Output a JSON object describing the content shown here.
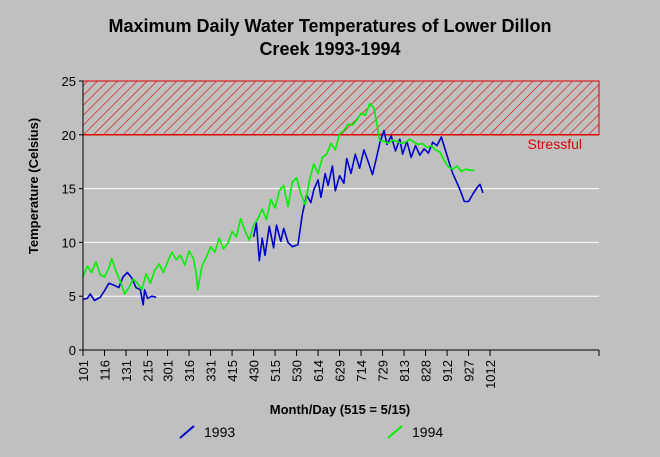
{
  "chart_data": {
    "type": "line",
    "title_line1": "Maximum Daily Water Temperatures of Lower Dillon",
    "title_line2": "Creek 1993-1994",
    "xlabel": "Month/Day (515 = 5/15)",
    "ylabel": "Temperature (Celsius)",
    "ylim": [
      0,
      25
    ],
    "yticks": [
      0,
      5,
      10,
      15,
      20,
      25
    ],
    "xlim": [
      0,
      360
    ],
    "x_tick_labels": [
      "101",
      "116",
      "131",
      "215",
      "301",
      "316",
      "331",
      "415",
      "430",
      "515",
      "530",
      "614",
      "629",
      "714",
      "729",
      "813",
      "828",
      "912",
      "927",
      "1012"
    ],
    "x_tick_days": [
      0,
      15,
      30,
      45,
      59,
      74,
      89,
      104,
      119,
      134,
      149,
      164,
      179,
      194,
      209,
      224,
      239,
      254,
      269,
      284
    ],
    "grid": "horizontal",
    "threshold": {
      "label": "Stressful",
      "y_from": 20,
      "y_to": 25,
      "color": "#e00000"
    },
    "series": [
      {
        "name": "1993",
        "color": "#0000cc",
        "points": [
          [
            0,
            4.7
          ],
          [
            3,
            4.8
          ],
          [
            5,
            5.2
          ],
          [
            8,
            4.6
          ],
          [
            12,
            4.9
          ],
          [
            15,
            5.5
          ],
          [
            18,
            6.2
          ],
          [
            22,
            6.0
          ],
          [
            25,
            5.8
          ],
          [
            28,
            6.8
          ],
          [
            31,
            7.2
          ],
          [
            34,
            6.7
          ],
          [
            37,
            5.8
          ],
          [
            40,
            5.6
          ],
          [
            42,
            4.2
          ],
          [
            43,
            5.6
          ],
          [
            45,
            4.8
          ],
          [
            48,
            5.0
          ],
          [
            51,
            4.9
          ],
          [
            52,
            null
          ],
          [
            119,
            10.5
          ],
          [
            121,
            11.8
          ],
          [
            123,
            8.3
          ],
          [
            125,
            10.4
          ],
          [
            127,
            8.8
          ],
          [
            130,
            11.5
          ],
          [
            133,
            9.5
          ],
          [
            135,
            11.6
          ],
          [
            138,
            10.1
          ],
          [
            140,
            11.3
          ],
          [
            143,
            10.0
          ],
          [
            146,
            9.6
          ],
          [
            150,
            9.8
          ],
          [
            153,
            12.6
          ],
          [
            156,
            14.4
          ],
          [
            159,
            13.7
          ],
          [
            161,
            14.9
          ],
          [
            164,
            15.8
          ],
          [
            166,
            14.2
          ],
          [
            169,
            16.4
          ],
          [
            171,
            15.3
          ],
          [
            174,
            17.1
          ],
          [
            176,
            14.8
          ],
          [
            179,
            16.2
          ],
          [
            182,
            15.5
          ],
          [
            184,
            17.8
          ],
          [
            187,
            16.4
          ],
          [
            190,
            18.2
          ],
          [
            193,
            16.9
          ],
          [
            196,
            18.6
          ],
          [
            199,
            17.5
          ],
          [
            202,
            16.3
          ],
          [
            205,
            18.0
          ],
          [
            207,
            19.2
          ],
          [
            210,
            20.4
          ],
          [
            212,
            19.1
          ],
          [
            215,
            19.9
          ],
          [
            218,
            18.5
          ],
          [
            221,
            19.6
          ],
          [
            223,
            18.2
          ],
          [
            226,
            19.4
          ],
          [
            229,
            17.9
          ],
          [
            232,
            19.0
          ],
          [
            235,
            18.1
          ],
          [
            238,
            18.7
          ],
          [
            241,
            18.3
          ],
          [
            244,
            19.3
          ],
          [
            247,
            19.0
          ],
          [
            250,
            19.8
          ],
          [
            253,
            18.5
          ],
          [
            256,
            17.2
          ],
          [
            258,
            16.4
          ],
          [
            260,
            15.8
          ],
          [
            263,
            14.9
          ],
          [
            266,
            13.8
          ],
          [
            269,
            13.8
          ],
          [
            272,
            14.5
          ],
          [
            275,
            15.1
          ],
          [
            277,
            15.4
          ],
          [
            279,
            14.6
          ]
        ]
      },
      {
        "name": "1994",
        "color": "#00ee00",
        "points": [
          [
            0,
            6.8
          ],
          [
            3,
            7.8
          ],
          [
            6,
            7.2
          ],
          [
            9,
            8.2
          ],
          [
            12,
            7.0
          ],
          [
            15,
            6.8
          ],
          [
            18,
            7.6
          ],
          [
            20,
            8.5
          ],
          [
            23,
            7.3
          ],
          [
            26,
            6.4
          ],
          [
            29,
            5.2
          ],
          [
            32,
            5.8
          ],
          [
            35,
            6.6
          ],
          [
            38,
            6.2
          ],
          [
            41,
            5.6
          ],
          [
            44,
            7.1
          ],
          [
            47,
            6.2
          ],
          [
            50,
            7.4
          ],
          [
            53,
            8.0
          ],
          [
            56,
            7.2
          ],
          [
            59,
            8.2
          ],
          [
            62,
            9.1
          ],
          [
            65,
            8.4
          ],
          [
            68,
            8.8
          ],
          [
            71,
            7.9
          ],
          [
            74,
            9.2
          ],
          [
            77,
            8.5
          ],
          [
            79,
            7.1
          ],
          [
            80,
            5.6
          ],
          [
            83,
            7.8
          ],
          [
            86,
            8.6
          ],
          [
            89,
            9.6
          ],
          [
            92,
            9.1
          ],
          [
            95,
            10.4
          ],
          [
            98,
            9.4
          ],
          [
            101,
            9.9
          ],
          [
            104,
            11.0
          ],
          [
            107,
            10.5
          ],
          [
            110,
            12.2
          ],
          [
            113,
            11.1
          ],
          [
            116,
            10.2
          ],
          [
            119,
            11.6
          ],
          [
            122,
            12.2
          ],
          [
            125,
            13.1
          ],
          [
            128,
            12.1
          ],
          [
            131,
            14.0
          ],
          [
            134,
            13.2
          ],
          [
            137,
            14.8
          ],
          [
            140,
            15.3
          ],
          [
            143,
            13.3
          ],
          [
            146,
            15.6
          ],
          [
            149,
            16.0
          ],
          [
            152,
            14.5
          ],
          [
            155,
            13.5
          ],
          [
            158,
            15.8
          ],
          [
            161,
            17.3
          ],
          [
            164,
            16.4
          ],
          [
            167,
            17.9
          ],
          [
            170,
            18.2
          ],
          [
            173,
            19.2
          ],
          [
            176,
            18.6
          ],
          [
            179,
            20.1
          ],
          [
            182,
            20.4
          ],
          [
            185,
            21.0
          ],
          [
            188,
            20.9
          ],
          [
            191,
            21.4
          ],
          [
            194,
            22.0
          ],
          [
            197,
            21.8
          ],
          [
            200,
            22.9
          ],
          [
            203,
            22.5
          ],
          [
            205,
            21.0
          ],
          [
            207,
            19.5
          ],
          [
            210,
            19.4
          ],
          [
            213,
            19.2
          ],
          [
            216,
            19.5
          ],
          [
            219,
            19.4
          ],
          [
            222,
            19.2
          ],
          [
            225,
            19.3
          ],
          [
            228,
            19.6
          ],
          [
            231,
            19.3
          ],
          [
            234,
            19.1
          ],
          [
            237,
            19.2
          ],
          [
            240,
            18.8
          ],
          [
            243,
            19.0
          ],
          [
            246,
            18.6
          ],
          [
            249,
            18.4
          ],
          [
            252,
            17.6
          ],
          [
            255,
            17.0
          ],
          [
            258,
            16.8
          ],
          [
            261,
            17.1
          ],
          [
            264,
            16.6
          ],
          [
            267,
            16.8
          ],
          [
            270,
            16.7
          ],
          [
            273,
            16.7
          ]
        ]
      }
    ]
  }
}
